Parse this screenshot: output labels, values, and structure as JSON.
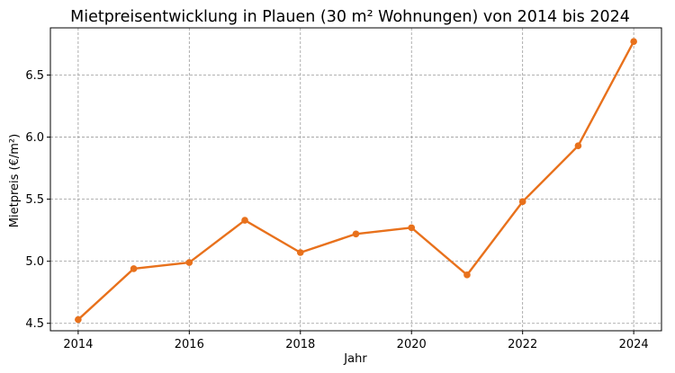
{
  "chart_data": {
    "type": "line",
    "title": "Mietpreisentwicklung in Plauen (30 m² Wohnungen) von 2014 bis 2024",
    "xlabel": "Jahr",
    "ylabel": "Mietpreis (€/m²)",
    "x": [
      2014,
      2015,
      2016,
      2017,
      2018,
      2019,
      2020,
      2021,
      2022,
      2023,
      2024
    ],
    "series": [
      {
        "values": [
          4.53,
          4.94,
          4.99,
          5.33,
          5.07,
          5.22,
          5.27,
          4.89,
          5.48,
          5.93,
          6.77
        ],
        "color": "#e8711c"
      }
    ],
    "xlim": [
      2013.5,
      2024.5
    ],
    "ylim": [
      4.44,
      6.88
    ],
    "xticks": [
      2014,
      2016,
      2018,
      2020,
      2022,
      2024
    ],
    "yticks": [
      4.5,
      5.0,
      5.5,
      6.0,
      6.5
    ],
    "ytick_labels": [
      "4.5",
      "5.0",
      "5.5",
      "6.0",
      "6.5"
    ],
    "grid": true,
    "grid_style": "dashed",
    "marker": "circle"
  }
}
